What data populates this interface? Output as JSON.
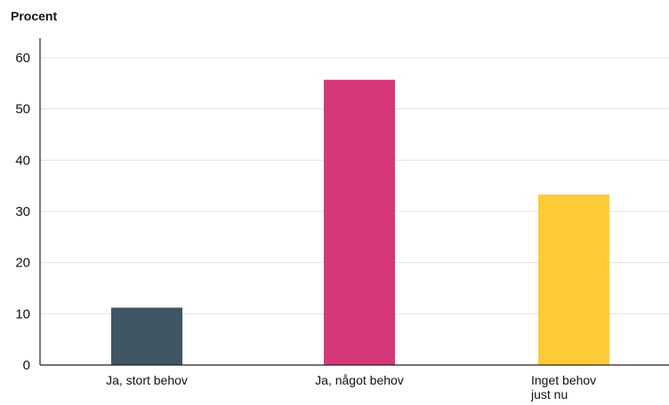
{
  "chart_data": {
    "type": "bar",
    "title": "",
    "ylabel": "Procent",
    "xlabel": "",
    "categories": [
      "Ja, stort behov",
      "Ja, något behov",
      "Inget behov just nu"
    ],
    "category_lines": [
      [
        "Ja, stort behov"
      ],
      [
        "Ja, något behov"
      ],
      [
        "Inget behov",
        "just nu"
      ]
    ],
    "values": [
      11.2,
      55.7,
      33.3
    ],
    "colors": [
      "#3f5563",
      "#d6387a",
      "#fecb37"
    ],
    "ylim": [
      0,
      60
    ],
    "yticks": [
      0,
      10,
      20,
      30,
      40,
      50,
      60
    ],
    "grid": true,
    "legend": "none"
  }
}
